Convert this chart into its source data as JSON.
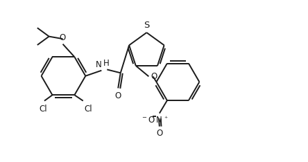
{
  "bg_color": "#ffffff",
  "line_color": "#1a1a1a",
  "line_width": 1.4,
  "font_size": 8.5,
  "figsize": [
    4.44,
    2.34
  ],
  "dpi": 100,
  "xlim": [
    0,
    10
  ],
  "ylim": [
    0,
    5.27
  ]
}
